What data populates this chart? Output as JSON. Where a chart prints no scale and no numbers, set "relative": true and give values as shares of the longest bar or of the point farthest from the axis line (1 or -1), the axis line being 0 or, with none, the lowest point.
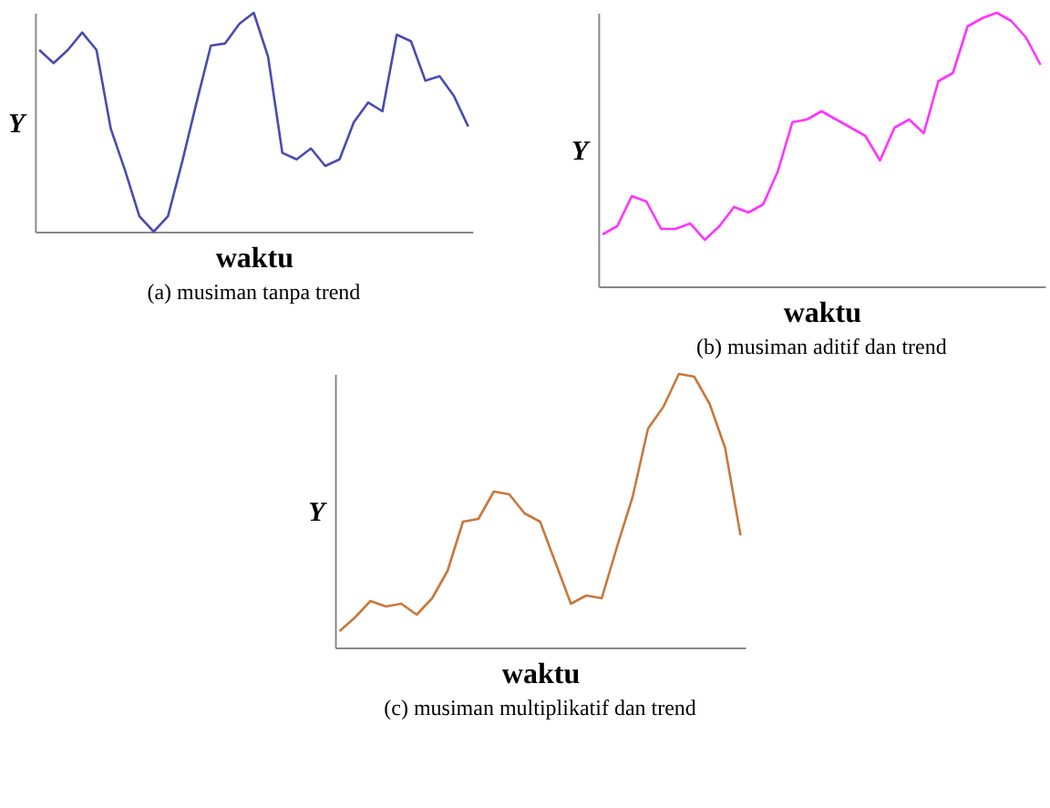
{
  "chart_data": [
    {
      "type": "line",
      "title": "(a) musiman tanpa trend",
      "xlabel": "waktu",
      "ylabel": "Y",
      "relative": true,
      "grid": false,
      "marker": "none",
      "categories": [
        null,
        null,
        null,
        null,
        null,
        null,
        null,
        null,
        null,
        null,
        null,
        null,
        null,
        null,
        null,
        null,
        null,
        null,
        null,
        null,
        null,
        null,
        null,
        null,
        null,
        null,
        null,
        null,
        null,
        null,
        null
      ],
      "series": [
        {
          "color": "#4b4bb0",
          "values": [
            0.83,
            0.77,
            0.83,
            0.91,
            0.83,
            0.47,
            0.28,
            0.07,
            0,
            0.07,
            0.32,
            0.59,
            0.85,
            0.86,
            0.95,
            1,
            0.8,
            0.36,
            0.33,
            0.38,
            0.3,
            0.33,
            0.5,
            0.59,
            0.55,
            0.9,
            0.87,
            0.69,
            0.71,
            0.62,
            0.48
          ]
        }
      ]
    },
    {
      "type": "line",
      "title": "(b) musiman aditif dan trend",
      "xlabel": "waktu",
      "ylabel": "Y",
      "relative": true,
      "grid": false,
      "marker": "none",
      "categories": [
        null,
        null,
        null,
        null,
        null,
        null,
        null,
        null,
        null,
        null,
        null,
        null,
        null,
        null,
        null,
        null,
        null,
        null,
        null,
        null,
        null,
        null,
        null,
        null,
        null,
        null,
        null,
        null,
        null,
        null,
        null
      ],
      "series": [
        {
          "color": "#ff33ff",
          "values": [
            0.19,
            0.22,
            0.33,
            0.31,
            0.21,
            0.21,
            0.23,
            0.17,
            0.22,
            0.29,
            0.27,
            0.3,
            0.42,
            0.6,
            0.61,
            0.64,
            0.61,
            0.58,
            0.55,
            0.46,
            0.58,
            0.61,
            0.56,
            0.75,
            0.78,
            0.95,
            0.98,
            1,
            0.97,
            0.91,
            0.81
          ]
        }
      ]
    },
    {
      "type": "line",
      "title": "(c) musiman multiplikatif dan trend",
      "xlabel": "waktu",
      "ylabel": "Y",
      "relative": true,
      "grid": false,
      "marker": "none",
      "categories": [
        null,
        null,
        null,
        null,
        null,
        null,
        null,
        null,
        null,
        null,
        null,
        null,
        null,
        null,
        null,
        null,
        null,
        null,
        null,
        null,
        null,
        null,
        null,
        null,
        null,
        null,
        null
      ],
      "series": [
        {
          "color": "#c8783c",
          "values": [
            0.06,
            0.11,
            0.17,
            0.15,
            0.16,
            0.12,
            0.18,
            0.28,
            0.46,
            0.47,
            0.57,
            0.56,
            0.49,
            0.46,
            0.31,
            0.16,
            0.19,
            0.18,
            0.37,
            0.55,
            0.8,
            0.88,
            1,
            0.99,
            0.89,
            0.73,
            0.41
          ]
        }
      ]
    }
  ]
}
